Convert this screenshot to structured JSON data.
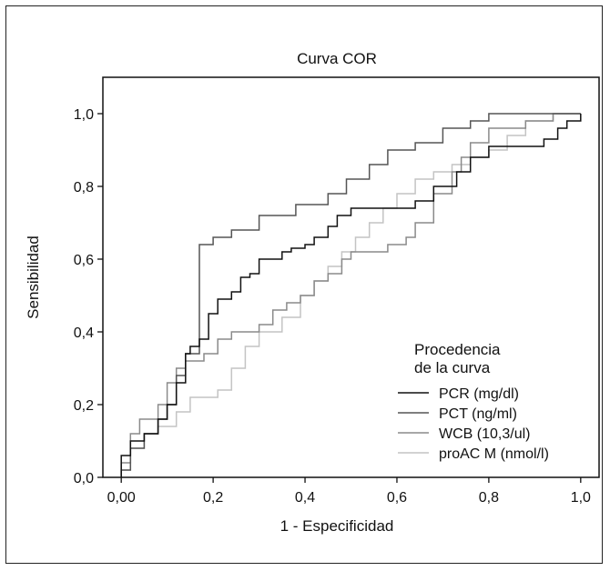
{
  "chart_data": {
    "type": "line",
    "title": "Curva COR",
    "xlabel": "1 - Especificidad",
    "ylabel": "Sensibilidad",
    "xlim": [
      -0.04,
      1.04
    ],
    "ylim": [
      0,
      1.1
    ],
    "x_ticks": [
      "0,00",
      "0,2",
      "0,4",
      "0,6",
      "0,8",
      "1,0"
    ],
    "x_tick_values": [
      0,
      0.2,
      0.4,
      0.6,
      0.8,
      1.0
    ],
    "y_ticks": [
      "0,0",
      "0,2",
      "0,4",
      "0,6",
      "0,8",
      "1,0"
    ],
    "y_tick_values": [
      0,
      0.2,
      0.4,
      0.6,
      0.8,
      1.0
    ],
    "grid": false,
    "legend": {
      "title_line1": "Procedencia",
      "title_line2": "de la curva",
      "placement": "bottom-right"
    },
    "series": [
      {
        "name": "PCR (mg/dl)",
        "color": "#111111",
        "points": [
          [
            0,
            0
          ],
          [
            0,
            0.06
          ],
          [
            0.02,
            0.06
          ],
          [
            0.02,
            0.1
          ],
          [
            0.05,
            0.1
          ],
          [
            0.05,
            0.12
          ],
          [
            0.08,
            0.12
          ],
          [
            0.08,
            0.16
          ],
          [
            0.1,
            0.16
          ],
          [
            0.1,
            0.2
          ],
          [
            0.12,
            0.2
          ],
          [
            0.12,
            0.26
          ],
          [
            0.14,
            0.26
          ],
          [
            0.14,
            0.34
          ],
          [
            0.15,
            0.34
          ],
          [
            0.15,
            0.36
          ],
          [
            0.17,
            0.36
          ],
          [
            0.17,
            0.38
          ],
          [
            0.19,
            0.38
          ],
          [
            0.19,
            0.45
          ],
          [
            0.21,
            0.45
          ],
          [
            0.21,
            0.49
          ],
          [
            0.24,
            0.49
          ],
          [
            0.24,
            0.51
          ],
          [
            0.26,
            0.51
          ],
          [
            0.26,
            0.55
          ],
          [
            0.28,
            0.55
          ],
          [
            0.28,
            0.56
          ],
          [
            0.3,
            0.56
          ],
          [
            0.3,
            0.6
          ],
          [
            0.35,
            0.6
          ],
          [
            0.35,
            0.62
          ],
          [
            0.37,
            0.62
          ],
          [
            0.37,
            0.63
          ],
          [
            0.4,
            0.63
          ],
          [
            0.4,
            0.64
          ],
          [
            0.42,
            0.64
          ],
          [
            0.42,
            0.66
          ],
          [
            0.45,
            0.66
          ],
          [
            0.45,
            0.69
          ],
          [
            0.47,
            0.69
          ],
          [
            0.47,
            0.72
          ],
          [
            0.5,
            0.72
          ],
          [
            0.5,
            0.74
          ],
          [
            0.56,
            0.74
          ],
          [
            0.56,
            0.74
          ],
          [
            0.64,
            0.74
          ],
          [
            0.64,
            0.76
          ],
          [
            0.68,
            0.76
          ],
          [
            0.68,
            0.8
          ],
          [
            0.73,
            0.8
          ],
          [
            0.73,
            0.84
          ],
          [
            0.76,
            0.84
          ],
          [
            0.76,
            0.88
          ],
          [
            0.8,
            0.88
          ],
          [
            0.8,
            0.91
          ],
          [
            0.92,
            0.91
          ],
          [
            0.92,
            0.93
          ],
          [
            0.95,
            0.93
          ],
          [
            0.95,
            0.96
          ],
          [
            0.97,
            0.96
          ],
          [
            0.97,
            0.98
          ],
          [
            1,
            0.98
          ],
          [
            1,
            1
          ]
        ]
      },
      {
        "name": "PCT (ng/ml)",
        "color": "#555555",
        "points": [
          [
            0,
            0
          ],
          [
            0,
            0.02
          ],
          [
            0.02,
            0.02
          ],
          [
            0.02,
            0.08
          ],
          [
            0.05,
            0.08
          ],
          [
            0.05,
            0.12
          ],
          [
            0.08,
            0.12
          ],
          [
            0.08,
            0.16
          ],
          [
            0.1,
            0.16
          ],
          [
            0.1,
            0.2
          ],
          [
            0.12,
            0.2
          ],
          [
            0.12,
            0.28
          ],
          [
            0.14,
            0.28
          ],
          [
            0.14,
            0.34
          ],
          [
            0.17,
            0.34
          ],
          [
            0.17,
            0.64
          ],
          [
            0.2,
            0.64
          ],
          [
            0.2,
            0.66
          ],
          [
            0.24,
            0.66
          ],
          [
            0.24,
            0.68
          ],
          [
            0.3,
            0.68
          ],
          [
            0.3,
            0.72
          ],
          [
            0.38,
            0.72
          ],
          [
            0.38,
            0.75
          ],
          [
            0.45,
            0.75
          ],
          [
            0.45,
            0.78
          ],
          [
            0.49,
            0.78
          ],
          [
            0.49,
            0.82
          ],
          [
            0.54,
            0.82
          ],
          [
            0.54,
            0.86
          ],
          [
            0.58,
            0.86
          ],
          [
            0.58,
            0.9
          ],
          [
            0.64,
            0.9
          ],
          [
            0.64,
            0.92
          ],
          [
            0.7,
            0.92
          ],
          [
            0.7,
            0.96
          ],
          [
            0.76,
            0.96
          ],
          [
            0.76,
            0.98
          ],
          [
            0.8,
            0.98
          ],
          [
            0.8,
            1
          ],
          [
            1,
            1
          ]
        ]
      },
      {
        "name": "WCB (10,3/ul)",
        "color": "#8a8a8a",
        "points": [
          [
            0,
            0
          ],
          [
            0,
            0.04
          ],
          [
            0.02,
            0.04
          ],
          [
            0.02,
            0.12
          ],
          [
            0.04,
            0.12
          ],
          [
            0.04,
            0.16
          ],
          [
            0.08,
            0.16
          ],
          [
            0.08,
            0.2
          ],
          [
            0.1,
            0.2
          ],
          [
            0.1,
            0.26
          ],
          [
            0.12,
            0.26
          ],
          [
            0.12,
            0.3
          ],
          [
            0.14,
            0.3
          ],
          [
            0.14,
            0.32
          ],
          [
            0.18,
            0.32
          ],
          [
            0.18,
            0.34
          ],
          [
            0.21,
            0.34
          ],
          [
            0.21,
            0.38
          ],
          [
            0.24,
            0.38
          ],
          [
            0.24,
            0.4
          ],
          [
            0.3,
            0.4
          ],
          [
            0.3,
            0.42
          ],
          [
            0.33,
            0.42
          ],
          [
            0.33,
            0.46
          ],
          [
            0.36,
            0.46
          ],
          [
            0.36,
            0.48
          ],
          [
            0.39,
            0.48
          ],
          [
            0.39,
            0.5
          ],
          [
            0.42,
            0.5
          ],
          [
            0.42,
            0.54
          ],
          [
            0.45,
            0.54
          ],
          [
            0.45,
            0.56
          ],
          [
            0.48,
            0.56
          ],
          [
            0.48,
            0.6
          ],
          [
            0.5,
            0.6
          ],
          [
            0.5,
            0.62
          ],
          [
            0.58,
            0.62
          ],
          [
            0.58,
            0.64
          ],
          [
            0.62,
            0.64
          ],
          [
            0.62,
            0.66
          ],
          [
            0.64,
            0.66
          ],
          [
            0.64,
            0.7
          ],
          [
            0.68,
            0.7
          ],
          [
            0.68,
            0.78
          ],
          [
            0.72,
            0.78
          ],
          [
            0.72,
            0.84
          ],
          [
            0.74,
            0.84
          ],
          [
            0.74,
            0.88
          ],
          [
            0.76,
            0.88
          ],
          [
            0.76,
            0.92
          ],
          [
            0.8,
            0.92
          ],
          [
            0.8,
            0.96
          ],
          [
            0.88,
            0.96
          ],
          [
            0.88,
            0.98
          ],
          [
            0.94,
            0.98
          ],
          [
            0.94,
            1
          ],
          [
            1,
            1
          ]
        ]
      },
      {
        "name": "proAC M (nmol/l)",
        "color": "#c4c4c4",
        "points": [
          [
            0,
            0
          ],
          [
            0,
            0.02
          ],
          [
            0.02,
            0.02
          ],
          [
            0.02,
            0.08
          ],
          [
            0.05,
            0.08
          ],
          [
            0.05,
            0.12
          ],
          [
            0.08,
            0.12
          ],
          [
            0.08,
            0.14
          ],
          [
            0.12,
            0.14
          ],
          [
            0.12,
            0.18
          ],
          [
            0.15,
            0.18
          ],
          [
            0.15,
            0.22
          ],
          [
            0.21,
            0.22
          ],
          [
            0.21,
            0.24
          ],
          [
            0.24,
            0.24
          ],
          [
            0.24,
            0.3
          ],
          [
            0.27,
            0.3
          ],
          [
            0.27,
            0.36
          ],
          [
            0.3,
            0.36
          ],
          [
            0.3,
            0.4
          ],
          [
            0.35,
            0.4
          ],
          [
            0.35,
            0.44
          ],
          [
            0.39,
            0.44
          ],
          [
            0.39,
            0.5
          ],
          [
            0.42,
            0.5
          ],
          [
            0.42,
            0.54
          ],
          [
            0.45,
            0.54
          ],
          [
            0.45,
            0.58
          ],
          [
            0.48,
            0.58
          ],
          [
            0.48,
            0.62
          ],
          [
            0.51,
            0.62
          ],
          [
            0.51,
            0.66
          ],
          [
            0.54,
            0.66
          ],
          [
            0.54,
            0.7
          ],
          [
            0.57,
            0.7
          ],
          [
            0.57,
            0.74
          ],
          [
            0.6,
            0.74
          ],
          [
            0.6,
            0.78
          ],
          [
            0.64,
            0.78
          ],
          [
            0.64,
            0.82
          ],
          [
            0.68,
            0.82
          ],
          [
            0.68,
            0.84
          ],
          [
            0.72,
            0.84
          ],
          [
            0.72,
            0.86
          ],
          [
            0.76,
            0.86
          ],
          [
            0.76,
            0.88
          ],
          [
            0.8,
            0.88
          ],
          [
            0.8,
            0.9
          ],
          [
            0.84,
            0.9
          ],
          [
            0.84,
            0.94
          ],
          [
            0.88,
            0.94
          ],
          [
            0.88,
            0.98
          ],
          [
            0.94,
            0.98
          ],
          [
            0.94,
            1
          ],
          [
            1,
            1
          ]
        ]
      }
    ]
  }
}
